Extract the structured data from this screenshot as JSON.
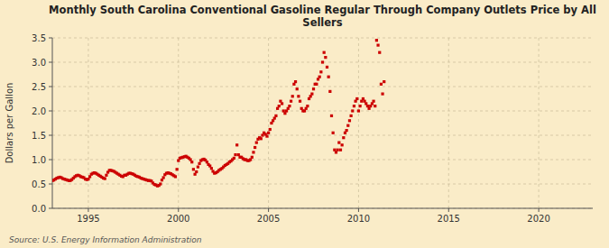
{
  "chart_data": {
    "type": "scatter",
    "title": "Monthly South Carolina Conventional Gasoline Regular Through Company Outlets Price by All\nSellers",
    "y_label": "Dollars per Gallon",
    "annotations": [
      "Source: U.S. Energy Information Administration"
    ],
    "color": "#cc0000",
    "marker": "square",
    "grid": true,
    "xlim": [
      1993.0,
      2023.0
    ],
    "ylim": [
      0.0,
      3.5
    ],
    "xticks": [
      1995,
      2000,
      2005,
      2010,
      2015,
      2020
    ],
    "yticks": [
      {
        "value": 0.0,
        "label": "0.0"
      },
      0.5,
      {
        "value": 1.0,
        "label": "1.0"
      },
      1.5,
      {
        "value": 2.0,
        "label": "2.0"
      },
      2.5,
      {
        "value": 3.0,
        "label": "3.0"
      },
      3.5
    ],
    "x": [
      1993.0,
      1993.083,
      1993.167,
      1993.25,
      1993.333,
      1993.417,
      1993.5,
      1993.583,
      1993.667,
      1993.75,
      1993.833,
      1993.917,
      1994.0,
      1994.083,
      1994.167,
      1994.25,
      1994.333,
      1994.417,
      1994.5,
      1994.583,
      1994.667,
      1994.75,
      1994.833,
      1994.917,
      1995.0,
      1995.083,
      1995.167,
      1995.25,
      1995.333,
      1995.417,
      1995.5,
      1995.583,
      1995.667,
      1995.75,
      1995.833,
      1995.917,
      1996.0,
      1996.083,
      1996.167,
      1996.25,
      1996.333,
      1996.417,
      1996.5,
      1996.583,
      1996.667,
      1996.75,
      1996.833,
      1996.917,
      1997.0,
      1997.083,
      1997.167,
      1997.25,
      1997.333,
      1997.417,
      1997.5,
      1997.583,
      1997.667,
      1997.75,
      1997.833,
      1997.917,
      1998.0,
      1998.083,
      1998.167,
      1998.25,
      1998.333,
      1998.417,
      1998.5,
      1998.583,
      1998.667,
      1998.75,
      1998.833,
      1998.917,
      1999.0,
      1999.083,
      1999.167,
      1999.25,
      1999.333,
      1999.417,
      1999.5,
      1999.583,
      1999.667,
      1999.75,
      1999.833,
      1999.917,
      2000.0,
      2000.083,
      2000.167,
      2000.25,
      2000.333,
      2000.417,
      2000.5,
      2000.583,
      2000.667,
      2000.75,
      2000.833,
      2000.917,
      2001.0,
      2001.083,
      2001.167,
      2001.25,
      2001.333,
      2001.417,
      2001.5,
      2001.583,
      2001.667,
      2001.75,
      2001.833,
      2001.917,
      2002.0,
      2002.083,
      2002.167,
      2002.25,
      2002.333,
      2002.417,
      2002.5,
      2002.583,
      2002.667,
      2002.75,
      2002.833,
      2002.917,
      2003.0,
      2003.083,
      2003.167,
      2003.25,
      2003.333,
      2003.417,
      2003.5,
      2003.583,
      2003.667,
      2003.75,
      2003.833,
      2003.917,
      2004.0,
      2004.083,
      2004.167,
      2004.25,
      2004.333,
      2004.417,
      2004.5,
      2004.583,
      2004.667,
      2004.75,
      2004.833,
      2004.917,
      2005.0,
      2005.083,
      2005.167,
      2005.25,
      2005.333,
      2005.417,
      2005.5,
      2005.583,
      2005.667,
      2005.75,
      2005.833,
      2005.917,
      2006.0,
      2006.083,
      2006.167,
      2006.25,
      2006.333,
      2006.417,
      2006.5,
      2006.583,
      2006.667,
      2006.75,
      2006.833,
      2006.917,
      2007.0,
      2007.083,
      2007.167,
      2007.25,
      2007.333,
      2007.417,
      2007.5,
      2007.583,
      2007.667,
      2007.75,
      2007.833,
      2007.917,
      2008.0,
      2008.083,
      2008.167,
      2008.25,
      2008.333,
      2008.417,
      2008.5,
      2008.583,
      2008.667,
      2008.75,
      2008.833,
      2008.917,
      2009.0,
      2009.083,
      2009.167,
      2009.25,
      2009.333,
      2009.417,
      2009.5,
      2009.583,
      2009.667,
      2009.75,
      2009.833,
      2009.917,
      2010.0,
      2010.083,
      2010.167,
      2010.25,
      2010.333,
      2010.417,
      2010.5,
      2010.583,
      2010.667,
      2010.75,
      2010.833,
      2010.917,
      2011.0,
      2011.083,
      2011.167,
      2011.25,
      2011.333,
      2011.417
    ],
    "values": [
      0.57,
      0.58,
      0.6,
      0.62,
      0.63,
      0.64,
      0.63,
      0.61,
      0.6,
      0.59,
      0.58,
      0.57,
      0.57,
      0.59,
      0.62,
      0.65,
      0.67,
      0.68,
      0.67,
      0.65,
      0.64,
      0.63,
      0.6,
      0.59,
      0.6,
      0.65,
      0.7,
      0.72,
      0.73,
      0.72,
      0.7,
      0.68,
      0.66,
      0.64,
      0.62,
      0.61,
      0.68,
      0.74,
      0.78,
      0.78,
      0.77,
      0.76,
      0.74,
      0.72,
      0.7,
      0.68,
      0.66,
      0.65,
      0.68,
      0.68,
      0.7,
      0.72,
      0.72,
      0.71,
      0.7,
      0.68,
      0.66,
      0.65,
      0.64,
      0.62,
      0.61,
      0.6,
      0.59,
      0.58,
      0.57,
      0.57,
      0.56,
      0.52,
      0.49,
      0.48,
      0.46,
      0.47,
      0.5,
      0.58,
      0.63,
      0.69,
      0.72,
      0.73,
      0.72,
      0.71,
      0.69,
      0.67,
      0.65,
      0.8,
      0.98,
      1.03,
      1.04,
      1.05,
      1.06,
      1.07,
      1.05,
      1.03,
      1.0,
      0.95,
      0.8,
      0.7,
      0.75,
      0.85,
      0.92,
      0.98,
      1.0,
      1.01,
      0.99,
      0.95,
      0.9,
      0.87,
      0.82,
      0.76,
      0.72,
      0.73,
      0.75,
      0.78,
      0.8,
      0.82,
      0.85,
      0.88,
      0.9,
      0.92,
      0.95,
      0.97,
      1.0,
      1.03,
      1.1,
      1.3,
      1.1,
      1.05,
      1.05,
      1.02,
      1.0,
      1.0,
      0.98,
      0.98,
      1.0,
      1.05,
      1.15,
      1.25,
      1.35,
      1.42,
      1.45,
      1.43,
      1.5,
      1.55,
      1.52,
      1.48,
      1.55,
      1.62,
      1.75,
      1.8,
      1.85,
      1.9,
      2.05,
      2.1,
      2.2,
      2.15,
      2.0,
      1.95,
      2.0,
      2.05,
      2.1,
      2.2,
      2.3,
      2.55,
      2.6,
      2.45,
      2.3,
      2.2,
      2.05,
      2.0,
      2.0,
      2.05,
      2.1,
      2.25,
      2.3,
      2.35,
      2.45,
      2.55,
      2.55,
      2.65,
      2.7,
      2.8,
      3.0,
      3.2,
      3.1,
      2.9,
      2.7,
      2.4,
      1.9,
      1.55,
      1.2,
      1.15,
      1.2,
      1.35,
      1.2,
      1.3,
      1.45,
      1.55,
      1.6,
      1.7,
      1.8,
      1.9,
      2.0,
      2.1,
      2.2,
      2.25,
      2.0,
      2.1,
      2.2,
      2.25,
      2.2,
      2.15,
      2.1,
      2.05,
      2.1,
      2.15,
      2.2,
      2.1,
      3.45,
      3.35,
      3.2,
      2.55,
      2.35,
      2.6
    ]
  }
}
